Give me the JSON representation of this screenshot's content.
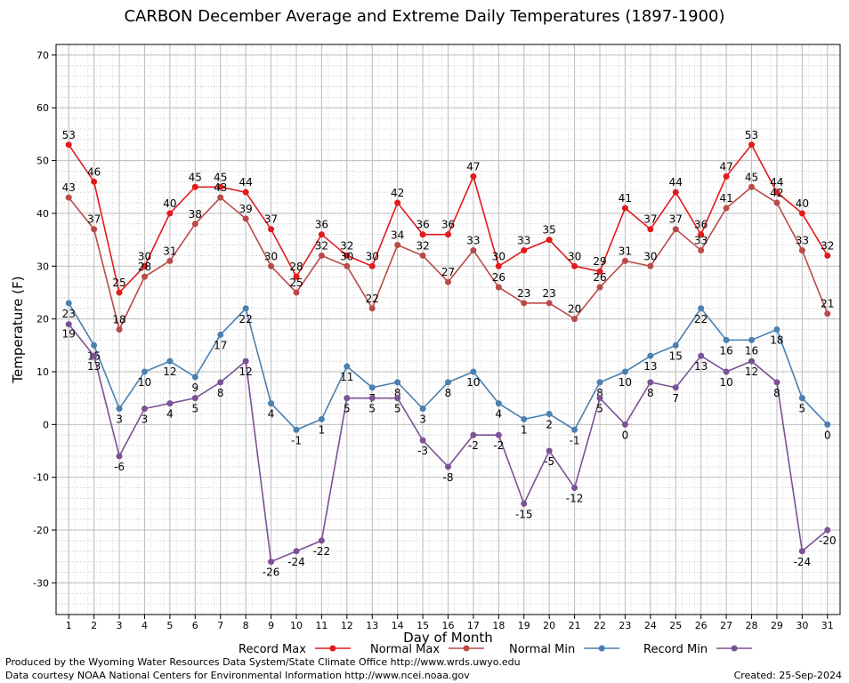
{
  "title": "CARBON December Average and Extreme Daily Temperatures (1897-1900)",
  "footer": {
    "credit1": "Produced by the Wyoming Water Resources Data System/State Climate Office http://www.wrds.uwyo.edu",
    "credit2": "Data courtesy NOAA National Centers for Environmental Information http://www.ncei.noaa.gov",
    "created": "Created:  25-Sep-2024"
  },
  "chart_data": {
    "type": "line",
    "title": "CARBON December Average and Extreme Daily Temperatures (1897-1900)",
    "xlabel": "Day of Month",
    "ylabel": "Temperature (F)",
    "ylim": [
      -36,
      72
    ],
    "yticks": [
      -30,
      -20,
      -10,
      0,
      10,
      20,
      30,
      40,
      50,
      60,
      70
    ],
    "x": [
      1,
      2,
      3,
      4,
      5,
      6,
      7,
      8,
      9,
      10,
      11,
      12,
      13,
      14,
      15,
      16,
      17,
      18,
      19,
      20,
      21,
      22,
      23,
      24,
      25,
      26,
      27,
      28,
      29,
      30,
      31
    ],
    "grid": true,
    "legend_position": "bottom",
    "series": [
      {
        "name": "Record Max",
        "color": "#e31a1c",
        "values": [
          53,
          46,
          25,
          30,
          40,
          45,
          45,
          44,
          37,
          28,
          36,
          32,
          30,
          42,
          36,
          36,
          47,
          30,
          33,
          35,
          30,
          29,
          41,
          37,
          44,
          36,
          47,
          53,
          44,
          40,
          32
        ]
      },
      {
        "name": "Normal Max",
        "color": "#b94a48",
        "values": [
          43,
          37,
          18,
          28,
          31,
          38,
          43,
          39,
          30,
          25,
          32,
          30,
          22,
          34,
          32,
          27,
          33,
          26,
          23,
          23,
          20,
          26,
          31,
          30,
          37,
          33,
          41,
          45,
          42,
          33,
          21
        ]
      },
      {
        "name": "Normal Min",
        "color": "#4a7fb0",
        "values": [
          23,
          15,
          3,
          10,
          12,
          9,
          17,
          22,
          4,
          -1,
          1,
          11,
          7,
          8,
          3,
          8,
          10,
          4,
          1,
          2,
          -1,
          8,
          10,
          13,
          15,
          22,
          16,
          16,
          18,
          5,
          0
        ]
      },
      {
        "name": "Record Min",
        "color": "#7b5294",
        "values": [
          19,
          13,
          -6,
          3,
          4,
          5,
          8,
          12,
          -26,
          -24,
          -22,
          5,
          5,
          5,
          -3,
          -8,
          -2,
          -2,
          -15,
          -5,
          -12,
          5,
          0,
          8,
          7,
          13,
          10,
          12,
          8,
          -24,
          -20
        ]
      }
    ]
  }
}
